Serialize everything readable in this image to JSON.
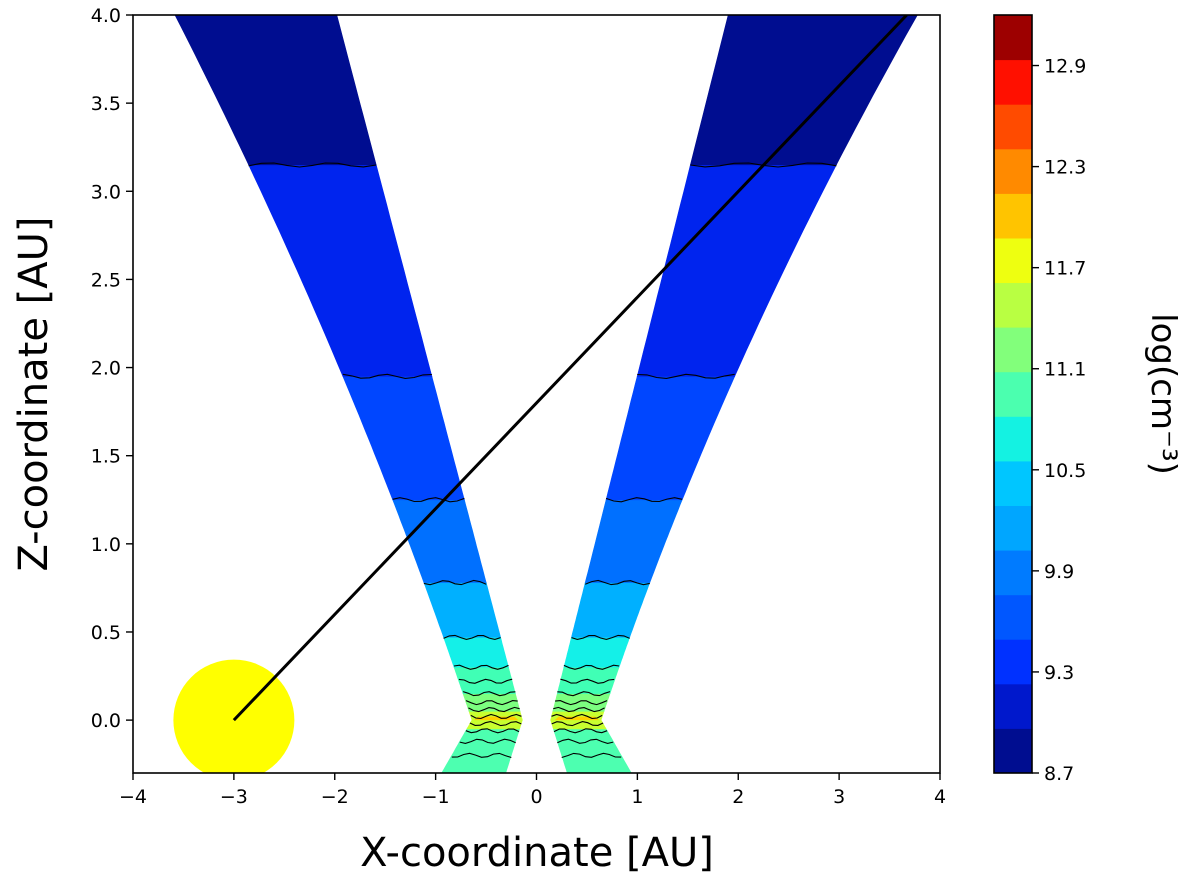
{
  "chart_data": {
    "type": "contour",
    "xlabel": "X-coordinate [AU]",
    "ylabel": "Z-coordinate [AU]",
    "xlim": [
      -4,
      4
    ],
    "ylim": [
      -0.3,
      4.0
    ],
    "x_ticks": [
      "−4",
      "−3",
      "−2",
      "−1",
      "0",
      "1",
      "2",
      "3",
      "4"
    ],
    "x_tick_values": [
      -4,
      -3,
      -2,
      -1,
      0,
      1,
      2,
      3,
      4
    ],
    "y_ticks": [
      "0.0",
      "0.5",
      "1.0",
      "1.5",
      "2.0",
      "2.5",
      "3.0",
      "3.5",
      "4.0"
    ],
    "y_tick_values": [
      0.0,
      0.5,
      1.0,
      1.5,
      2.0,
      2.5,
      3.0,
      3.5,
      4.0
    ],
    "colorbar": {
      "label": "log(cm⁻³)",
      "range": [
        8.7,
        13.2
      ],
      "tick_labels": [
        "8.7",
        "9.3",
        "9.9",
        "10.5",
        "11.1",
        "11.7",
        "12.3",
        "12.9"
      ],
      "tick_values": [
        8.7,
        9.3,
        9.9,
        10.5,
        11.1,
        11.7,
        12.3,
        12.9
      ],
      "levels": [
        8.7,
        9.0,
        9.3,
        9.6,
        9.9,
        10.2,
        10.5,
        10.8,
        11.1,
        11.4,
        11.7,
        12.0,
        12.3,
        12.6,
        12.9,
        13.2
      ],
      "colors": [
        "#000d90",
        "#0018cc",
        "#0031ff",
        "#0057ff",
        "#007bff",
        "#00a6ff",
        "#00c6ff",
        "#14f2e2",
        "#4bffaf",
        "#82ff7b",
        "#b9ff42",
        "#eeff10",
        "#ffc400",
        "#ff8a00",
        "#ff4b00",
        "#ff1000",
        "#9d0000"
      ]
    },
    "wind_band_colors": {
      "z_above_3.15": "#000d90",
      "z_1.95_to_3.15": "#0024ee",
      "z_1.25_to_1.95": "#0046ff",
      "z_0.78_to_1.25": "#0070ff",
      "z_0.47_to_0.78": "#00b0ff",
      "z_0.30_to_0.47": "#14f0e8",
      "z_0.15_to_0.30": "#40ffb5",
      "z_0.05_to_0.15": "#7cff80",
      "z_-0.05_to_0.05": "#c8ff30",
      "z_below_-0.05": "#4dffb0"
    },
    "star": {
      "x": -3.0,
      "y": 0.0,
      "radius": 0.6,
      "color": "#ffff00"
    },
    "line_of_sight": {
      "x": [
        -3.0,
        3.67
      ],
      "y": [
        0.0,
        4.0
      ],
      "color": "#000000"
    },
    "grid": false
  }
}
